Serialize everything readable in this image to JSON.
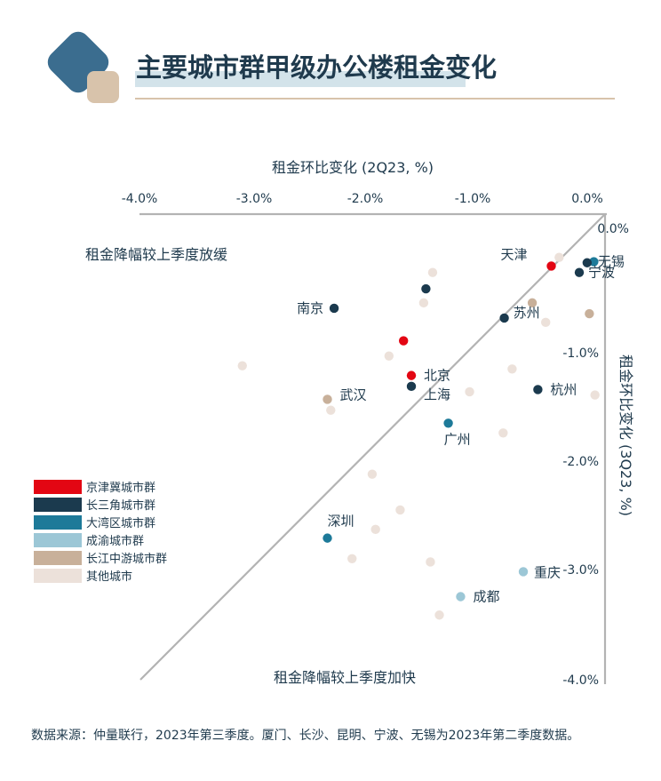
{
  "title": "主要城市群甲级办公楼租金变化",
  "source": "数据来源：仲量联行，2023年第三季度。厦门、长沙、昆明、宁波、无锡为2023年第二季度数据。",
  "colors": {
    "navy": "#1f3a4d",
    "accent_blue": "#3b6d8f",
    "accent_beige": "#d8c3ab",
    "title_highlight": "#d3e3ea",
    "axis": "#b3b3b3",
    "divider": "#d8c3ab"
  },
  "chart_data": {
    "type": "scatter",
    "xlabel": "租金环比变化 (2Q23, %)",
    "ylabel": "租金环比变化 (3Q23, %)",
    "xlim": [
      -4.0,
      0.0
    ],
    "ylim": [
      -4.0,
      0.0
    ],
    "x_ticks": [
      "-4.0%",
      "-3.0%",
      "-2.0%",
      "-1.0%",
      "0.0%"
    ],
    "y_ticks": [
      "0.0%",
      "-1.0%",
      "-2.0%",
      "-3.0%",
      "-4.0%"
    ],
    "annotations": [
      "租金降幅较上季度放缓",
      "租金降幅较上季度加快"
    ],
    "series": [
      {
        "name": "京津冀城市群",
        "color": "#e30613",
        "points": [
          {
            "x": -0.48,
            "y": -0.2,
            "label": "天津"
          },
          {
            "x": -1.73,
            "y": -1.21,
            "label": "北京"
          },
          {
            "x": -1.8,
            "y": -0.89,
            "label": ""
          }
        ]
      },
      {
        "name": "长三角城市群",
        "color": "#1b3a4e",
        "points": [
          {
            "x": -0.16,
            "y": -0.17,
            "label": "无锡"
          },
          {
            "x": -0.23,
            "y": -0.26,
            "label": "宁波"
          },
          {
            "x": -0.9,
            "y": -0.68,
            "label": "苏州"
          },
          {
            "x": -2.42,
            "y": -0.59,
            "label": "南京"
          },
          {
            "x": -1.73,
            "y": -1.31,
            "label": "上海"
          },
          {
            "x": -0.6,
            "y": -1.34,
            "label": "杭州"
          },
          {
            "x": -1.6,
            "y": -0.41,
            "label": ""
          }
        ]
      },
      {
        "name": "大湾区城市群",
        "color": "#1d7a99",
        "points": [
          {
            "x": -0.1,
            "y": -0.16,
            "label": ""
          },
          {
            "x": -1.4,
            "y": -1.65,
            "label": "广州"
          },
          {
            "x": -2.48,
            "y": -2.71,
            "label": "深圳"
          }
        ]
      },
      {
        "name": "成渝城市群",
        "color": "#9cc7d6",
        "points": [
          {
            "x": -0.73,
            "y": -3.02,
            "label": "重庆"
          },
          {
            "x": -1.29,
            "y": -3.25,
            "label": "成都"
          }
        ]
      },
      {
        "name": "长江中游城市群",
        "color": "#c8b09a",
        "points": [
          {
            "x": -2.48,
            "y": -1.43,
            "label": "武汉"
          },
          {
            "x": -0.65,
            "y": -0.54,
            "label": ""
          },
          {
            "x": -0.14,
            "y": -0.64,
            "label": ""
          }
        ]
      },
      {
        "name": "其他城市",
        "color": "#ece1da",
        "points": [
          {
            "x": -0.41,
            "y": -0.12,
            "label": ""
          },
          {
            "x": -1.54,
            "y": -0.26,
            "label": ""
          },
          {
            "x": -1.62,
            "y": -0.54,
            "label": ""
          },
          {
            "x": -0.53,
            "y": -0.72,
            "label": ""
          },
          {
            "x": -1.93,
            "y": -1.03,
            "label": ""
          },
          {
            "x": -3.24,
            "y": -1.12,
            "label": ""
          },
          {
            "x": -0.83,
            "y": -1.15,
            "label": ""
          },
          {
            "x": -1.21,
            "y": -1.36,
            "label": ""
          },
          {
            "x": -0.09,
            "y": -1.39,
            "label": ""
          },
          {
            "x": -2.45,
            "y": -1.53,
            "label": ""
          },
          {
            "x": -0.91,
            "y": -1.74,
            "label": ""
          },
          {
            "x": -2.08,
            "y": -2.12,
            "label": ""
          },
          {
            "x": -1.83,
            "y": -2.45,
            "label": ""
          },
          {
            "x": -2.05,
            "y": -2.63,
            "label": ""
          },
          {
            "x": -2.26,
            "y": -2.9,
            "label": ""
          },
          {
            "x": -1.56,
            "y": -2.93,
            "label": ""
          },
          {
            "x": -1.48,
            "y": -3.42,
            "label": ""
          }
        ]
      }
    ]
  }
}
